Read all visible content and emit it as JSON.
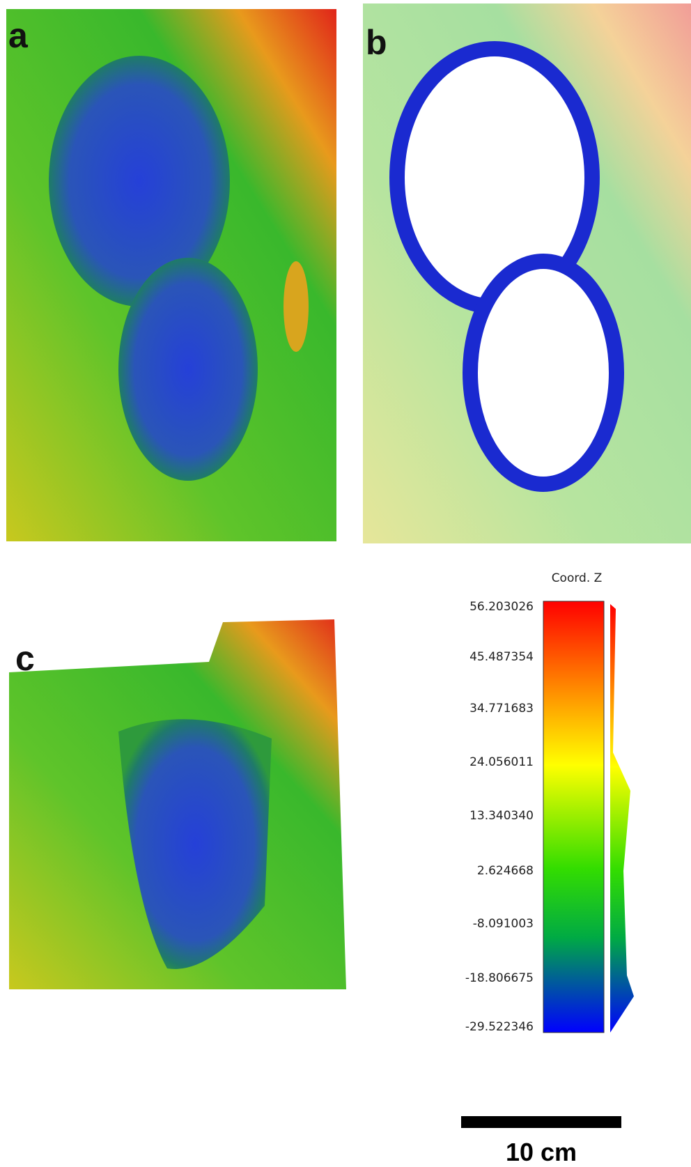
{
  "panels": {
    "a": "a",
    "b": "b",
    "c": "c"
  },
  "colorbar": {
    "title": "Coord. Z",
    "ticks": [
      "56.203026",
      "45.487354",
      "34.771683",
      "24.056011",
      "13.340340",
      "2.624668",
      "-8.091003",
      "-18.806675",
      "-29.522346"
    ]
  },
  "scale_bar": {
    "label": "10 cm"
  }
}
